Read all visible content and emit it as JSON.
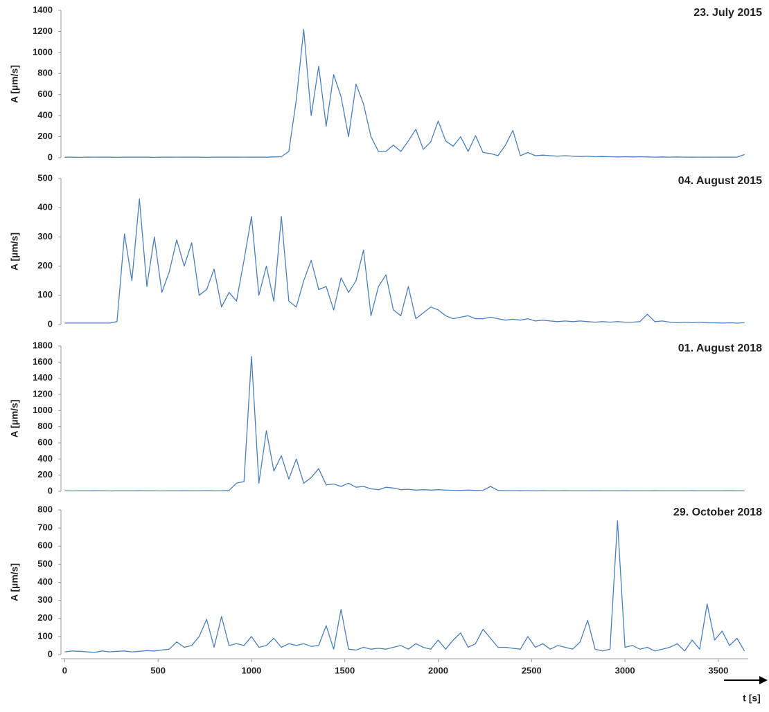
{
  "chart_data": [
    {
      "type": "line",
      "title": "23. July 2015",
      "ylabel": "A [µm/s]",
      "color": "#4a7ebb",
      "xlim": [
        -20,
        3660
      ],
      "ylim": [
        0,
        1400
      ],
      "yticks": [
        0,
        200,
        400,
        600,
        800,
        1000,
        1200,
        1400
      ],
      "x": [
        0,
        40,
        80,
        120,
        160,
        200,
        240,
        280,
        320,
        360,
        400,
        440,
        480,
        520,
        560,
        600,
        640,
        680,
        720,
        760,
        800,
        840,
        880,
        920,
        960,
        1000,
        1040,
        1080,
        1120,
        1160,
        1200,
        1240,
        1280,
        1320,
        1360,
        1400,
        1440,
        1480,
        1520,
        1560,
        1600,
        1640,
        1680,
        1720,
        1760,
        1800,
        1840,
        1880,
        1920,
        1960,
        2000,
        2040,
        2080,
        2120,
        2160,
        2200,
        2240,
        2280,
        2320,
        2360,
        2400,
        2440,
        2480,
        2520,
        2560,
        2600,
        2640,
        2680,
        2720,
        2760,
        2800,
        2840,
        2880,
        2920,
        2960,
        3000,
        3040,
        3080,
        3120,
        3160,
        3200,
        3240,
        3280,
        3320,
        3360,
        3400,
        3440,
        3480,
        3520,
        3560,
        3600,
        3640
      ],
      "values": [
        5,
        5,
        4,
        5,
        6,
        5,
        5,
        4,
        5,
        5,
        5,
        5,
        4,
        5,
        5,
        6,
        5,
        5,
        5,
        4,
        5,
        5,
        5,
        5,
        6,
        5,
        5,
        5,
        8,
        10,
        60,
        550,
        1220,
        400,
        870,
        300,
        790,
        580,
        200,
        700,
        510,
        200,
        60,
        60,
        120,
        60,
        160,
        270,
        80,
        150,
        350,
        160,
        110,
        200,
        60,
        210,
        50,
        40,
        20,
        120,
        260,
        20,
        50,
        20,
        25,
        20,
        15,
        20,
        15,
        12,
        15,
        10,
        12,
        10,
        8,
        10,
        8,
        10,
        8,
        6,
        8,
        6,
        8,
        6,
        5,
        6,
        5,
        6,
        5,
        5,
        6,
        30
      ]
    },
    {
      "type": "line",
      "title": "04. August 2015",
      "ylabel": "A [µm/s]",
      "color": "#4a7ebb",
      "xlim": [
        -20,
        3660
      ],
      "ylim": [
        0,
        500
      ],
      "yticks": [
        0,
        100,
        200,
        300,
        400,
        500
      ],
      "x": [
        0,
        40,
        80,
        120,
        160,
        200,
        240,
        280,
        320,
        360,
        400,
        440,
        480,
        520,
        560,
        600,
        640,
        680,
        720,
        760,
        800,
        840,
        880,
        920,
        960,
        1000,
        1040,
        1080,
        1120,
        1160,
        1200,
        1240,
        1280,
        1320,
        1360,
        1400,
        1440,
        1480,
        1520,
        1560,
        1600,
        1640,
        1680,
        1720,
        1760,
        1800,
        1840,
        1880,
        1920,
        1960,
        2000,
        2040,
        2080,
        2120,
        2160,
        2200,
        2240,
        2280,
        2320,
        2360,
        2400,
        2440,
        2480,
        2520,
        2560,
        2600,
        2640,
        2680,
        2720,
        2760,
        2800,
        2840,
        2880,
        2920,
        2960,
        3000,
        3040,
        3080,
        3120,
        3160,
        3200,
        3240,
        3280,
        3320,
        3360,
        3400,
        3440,
        3480,
        3520,
        3560,
        3600,
        3640
      ],
      "values": [
        5,
        5,
        5,
        5,
        5,
        5,
        5,
        10,
        310,
        150,
        430,
        130,
        300,
        110,
        180,
        290,
        200,
        280,
        100,
        120,
        190,
        60,
        110,
        80,
        220,
        370,
        100,
        200,
        80,
        370,
        80,
        60,
        150,
        220,
        120,
        130,
        50,
        160,
        110,
        150,
        255,
        30,
        130,
        170,
        50,
        30,
        130,
        20,
        40,
        60,
        50,
        30,
        20,
        25,
        30,
        20,
        20,
        25,
        20,
        15,
        18,
        15,
        20,
        12,
        15,
        12,
        10,
        12,
        10,
        12,
        10,
        8,
        10,
        8,
        10,
        8,
        8,
        10,
        35,
        10,
        12,
        8,
        6,
        8,
        6,
        8,
        6,
        6,
        5,
        6,
        5,
        6
      ]
    },
    {
      "type": "line",
      "title": "01. August 2018",
      "ylabel": "A [µm/s]",
      "color": "#4a7ebb",
      "xlim": [
        -20,
        3660
      ],
      "ylim": [
        0,
        1800
      ],
      "yticks": [
        0,
        200,
        400,
        600,
        800,
        1000,
        1200,
        1400,
        1600,
        1800
      ],
      "x": [
        0,
        40,
        80,
        120,
        160,
        200,
        240,
        280,
        320,
        360,
        400,
        440,
        480,
        520,
        560,
        600,
        640,
        680,
        720,
        760,
        800,
        840,
        880,
        920,
        960,
        1000,
        1040,
        1080,
        1120,
        1160,
        1200,
        1240,
        1280,
        1320,
        1360,
        1400,
        1440,
        1480,
        1520,
        1560,
        1600,
        1640,
        1680,
        1720,
        1760,
        1800,
        1840,
        1880,
        1920,
        1960,
        2000,
        2040,
        2080,
        2120,
        2160,
        2200,
        2240,
        2280,
        2320,
        2360,
        2400,
        2440,
        2480,
        2520,
        2560,
        2600,
        2640,
        2680,
        2720,
        2760,
        2800,
        2840,
        2880,
        2920,
        2960,
        3000,
        3040,
        3080,
        3120,
        3160,
        3200,
        3240,
        3280,
        3320,
        3360,
        3400,
        3440,
        3480,
        3520,
        3560,
        3600,
        3640
      ],
      "values": [
        5,
        4,
        5,
        5,
        6,
        5,
        4,
        5,
        5,
        5,
        6,
        5,
        5,
        4,
        5,
        5,
        6,
        5,
        5,
        8,
        5,
        6,
        10,
        100,
        120,
        1670,
        100,
        750,
        250,
        440,
        150,
        400,
        100,
        170,
        280,
        80,
        90,
        60,
        100,
        50,
        60,
        30,
        20,
        50,
        40,
        20,
        25,
        15,
        20,
        15,
        20,
        15,
        12,
        10,
        15,
        10,
        12,
        60,
        10,
        8,
        8,
        6,
        8,
        5,
        6,
        5,
        5,
        6,
        5,
        5,
        5,
        6,
        5,
        5,
        5,
        6,
        5,
        5,
        5,
        6,
        5,
        5,
        5,
        5,
        6,
        5,
        5,
        5,
        5,
        6,
        5,
        5
      ]
    },
    {
      "type": "line",
      "title": "29. October 2018",
      "ylabel": "A [µm/s]",
      "xlabel": "t [s]",
      "color": "#4a7ebb",
      "xlim": [
        -20,
        3660
      ],
      "ylim": [
        0,
        800
      ],
      "yticks": [
        0,
        100,
        200,
        300,
        400,
        500,
        600,
        700,
        800
      ],
      "xticks": [
        0,
        500,
        1000,
        1500,
        2000,
        2500,
        3000,
        3500
      ],
      "x": [
        0,
        40,
        80,
        120,
        160,
        200,
        240,
        280,
        320,
        360,
        400,
        440,
        480,
        520,
        560,
        600,
        640,
        680,
        720,
        760,
        800,
        840,
        880,
        920,
        960,
        1000,
        1040,
        1080,
        1120,
        1160,
        1200,
        1240,
        1280,
        1320,
        1360,
        1400,
        1440,
        1480,
        1520,
        1560,
        1600,
        1640,
        1680,
        1720,
        1760,
        1800,
        1840,
        1880,
        1920,
        1960,
        2000,
        2040,
        2080,
        2120,
        2160,
        2200,
        2240,
        2280,
        2320,
        2360,
        2400,
        2440,
        2480,
        2520,
        2560,
        2600,
        2640,
        2680,
        2720,
        2760,
        2800,
        2840,
        2880,
        2920,
        2960,
        3000,
        3040,
        3080,
        3120,
        3160,
        3200,
        3240,
        3280,
        3320,
        3360,
        3400,
        3440,
        3480,
        3520,
        3560,
        3600,
        3640
      ],
      "values": [
        15,
        20,
        18,
        15,
        12,
        20,
        15,
        18,
        20,
        15,
        18,
        22,
        20,
        25,
        30,
        70,
        40,
        50,
        100,
        195,
        40,
        210,
        50,
        60,
        50,
        100,
        40,
        50,
        90,
        40,
        60,
        50,
        60,
        45,
        50,
        160,
        30,
        250,
        30,
        25,
        40,
        30,
        35,
        30,
        40,
        50,
        30,
        60,
        40,
        30,
        80,
        30,
        80,
        120,
        40,
        60,
        140,
        90,
        40,
        40,
        35,
        30,
        100,
        40,
        60,
        30,
        50,
        40,
        30,
        70,
        190,
        30,
        20,
        30,
        740,
        40,
        50,
        30,
        40,
        20,
        30,
        40,
        60,
        20,
        80,
        30,
        280,
        80,
        130,
        50,
        90,
        20
      ]
    }
  ]
}
